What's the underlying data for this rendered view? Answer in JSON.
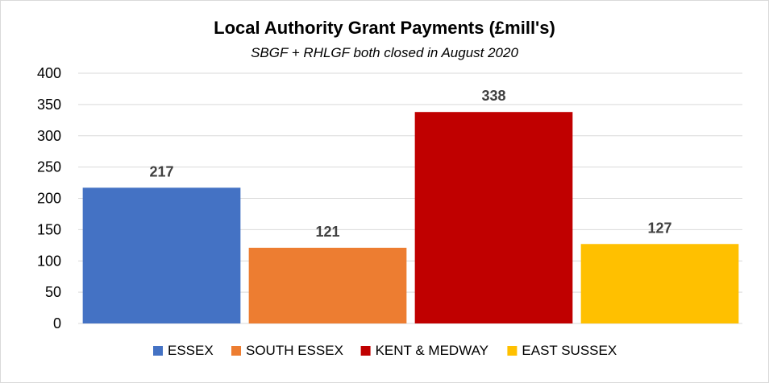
{
  "chart_data": {
    "type": "bar",
    "title": "Local Authority Grant Payments (£mill's)",
    "subtitle": "SBGF + RHLGF both closed in August 2020",
    "categories": [
      "ESSEX",
      "SOUTH ESSEX",
      "KENT & MEDWAY",
      "EAST SUSSEX"
    ],
    "values": [
      217,
      121,
      338,
      127
    ],
    "colors": [
      "#4472c4",
      "#ed7d31",
      "#c00000",
      "#ffc000"
    ],
    "ylim": [
      0,
      400
    ],
    "yticks": [
      0,
      50,
      100,
      150,
      200,
      250,
      300,
      350,
      400
    ],
    "grid": true,
    "legend": "bottom",
    "xlabel": "",
    "ylabel": ""
  }
}
